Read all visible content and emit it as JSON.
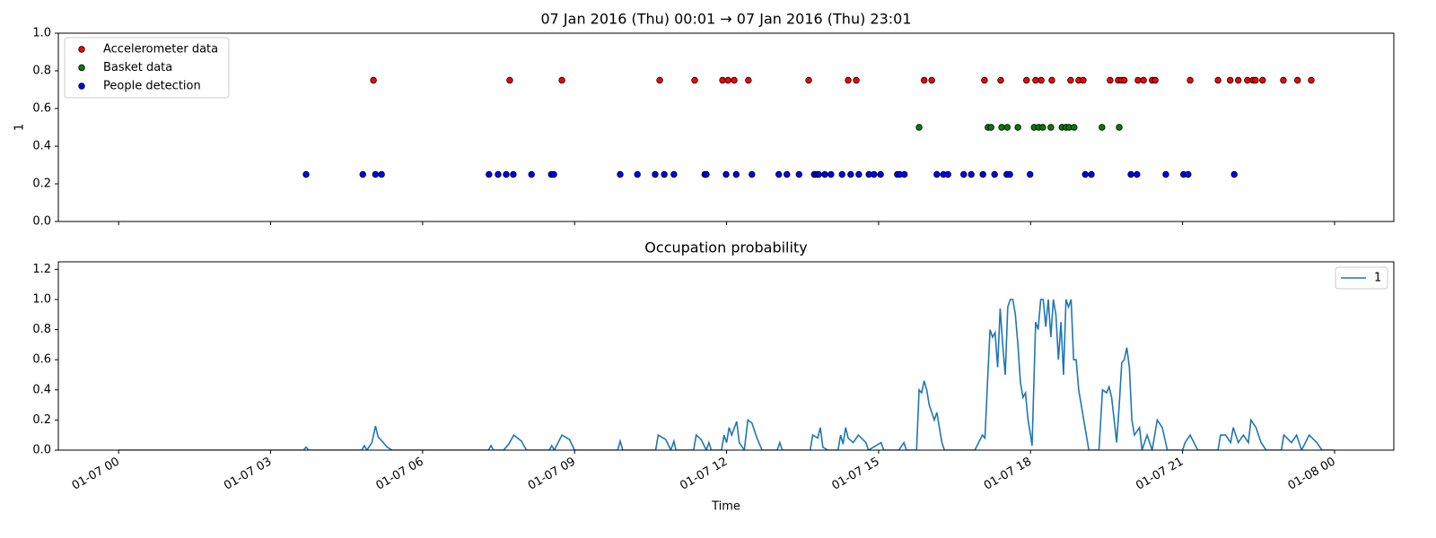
{
  "chart_data": [
    {
      "type": "scatter",
      "title": "07 Jan 2016 (Thu) 00:01 → 07 Jan 2016 (Thu) 23:01",
      "ylabel": "1",
      "xlim": [
        -1.19,
        25.17
      ],
      "xticks": [
        0,
        3,
        6,
        9,
        12,
        15,
        18,
        21,
        24
      ],
      "ylim": [
        0,
        1
      ],
      "yticks": [
        {
          "value": 0,
          "label": "0.0"
        },
        {
          "value": 0.2,
          "label": "0.2"
        },
        {
          "value": 0.4,
          "label": "0.4"
        },
        {
          "value": 0.6,
          "label": "0.6"
        },
        {
          "value": 0.8,
          "label": "0.8"
        },
        {
          "value": 1,
          "label": "1.0"
        }
      ],
      "legend": "upper left",
      "series": [
        {
          "name": "Accelerometer data",
          "color": "#ff0000",
          "x": [
            5.03,
            7.72,
            8.75,
            10.68,
            11.37,
            11.92,
            12.03,
            12.15,
            12.43,
            13.62,
            14.4,
            14.56,
            15.9,
            16.05,
            17.09,
            17.41,
            17.92,
            18.1,
            18.21,
            18.42,
            18.79,
            18.95,
            19.04,
            19.57,
            19.73,
            19.8,
            19.85,
            20.12,
            20.23,
            20.4,
            20.46,
            21.15,
            21.7,
            21.94,
            22.1,
            22.28,
            22.39,
            22.44,
            22.58,
            22.99,
            23.27,
            23.54
          ],
          "values": [
            0.75,
            0.75,
            0.75,
            0.75,
            0.75,
            0.75,
            0.75,
            0.75,
            0.75,
            0.75,
            0.75,
            0.75,
            0.75,
            0.75,
            0.75,
            0.75,
            0.75,
            0.75,
            0.75,
            0.75,
            0.75,
            0.75,
            0.75,
            0.75,
            0.75,
            0.75,
            0.75,
            0.75,
            0.75,
            0.75,
            0.75,
            0.75,
            0.75,
            0.75,
            0.75,
            0.75,
            0.75,
            0.75,
            0.75,
            0.75,
            0.75,
            0.75
          ]
        },
        {
          "name": "Basket data",
          "color": "#008000",
          "x": [
            15.8,
            17.16,
            17.22,
            17.43,
            17.54,
            17.75,
            18.07,
            18.16,
            18.24,
            18.4,
            18.62,
            18.7,
            18.76,
            18.86,
            19.41,
            19.75
          ],
          "values": [
            0.5,
            0.5,
            0.5,
            0.5,
            0.5,
            0.5,
            0.5,
            0.5,
            0.5,
            0.5,
            0.5,
            0.5,
            0.5,
            0.5,
            0.5,
            0.5
          ]
        },
        {
          "name": "People detection",
          "color": "#0000ff",
          "x": [
            3.7,
            4.82,
            5.07,
            5.19,
            7.31,
            7.49,
            7.65,
            7.79,
            8.15,
            8.54,
            8.59,
            9.9,
            10.24,
            10.59,
            10.77,
            10.96,
            11.57,
            11.6,
            11.99,
            12.19,
            12.5,
            13.03,
            13.19,
            13.43,
            13.73,
            13.78,
            13.82,
            13.94,
            14.06,
            14.28,
            14.45,
            14.61,
            14.81,
            14.91,
            15.04,
            15.37,
            15.42,
            15.51,
            16.15,
            16.28,
            16.37,
            16.68,
            16.83,
            17.06,
            17.29,
            17.53,
            17.59,
            17.99,
            19.08,
            19.2,
            19.98,
            20.1,
            20.67,
            21.02,
            21.11,
            22.02
          ],
          "values": [
            0.25,
            0.25,
            0.25,
            0.25,
            0.25,
            0.25,
            0.25,
            0.25,
            0.25,
            0.25,
            0.25,
            0.25,
            0.25,
            0.25,
            0.25,
            0.25,
            0.25,
            0.25,
            0.25,
            0.25,
            0.25,
            0.25,
            0.25,
            0.25,
            0.25,
            0.25,
            0.25,
            0.25,
            0.25,
            0.25,
            0.25,
            0.25,
            0.25,
            0.25,
            0.25,
            0.25,
            0.25,
            0.25,
            0.25,
            0.25,
            0.25,
            0.25,
            0.25,
            0.25,
            0.25,
            0.25,
            0.25,
            0.25,
            0.25,
            0.25,
            0.25,
            0.25,
            0.25,
            0.25,
            0.25,
            0.25
          ]
        }
      ]
    },
    {
      "type": "line",
      "title": "Occupation probability",
      "xlabel": "Time",
      "xlim": [
        -1.19,
        25.17
      ],
      "xticks": [
        {
          "value": 0,
          "label": "01-07 00"
        },
        {
          "value": 3,
          "label": "01-07 03"
        },
        {
          "value": 6,
          "label": "01-07 06"
        },
        {
          "value": 9,
          "label": "01-07 09"
        },
        {
          "value": 12,
          "label": "01-07 12"
        },
        {
          "value": 15,
          "label": "01-07 15"
        },
        {
          "value": 18,
          "label": "01-07 18"
        },
        {
          "value": 21,
          "label": "01-07 21"
        },
        {
          "value": 24,
          "label": "01-08 00"
        }
      ],
      "ylim": [
        0,
        1.25
      ],
      "yticks": [
        {
          "value": 0,
          "label": "0.0"
        },
        {
          "value": 0.2,
          "label": "0.2"
        },
        {
          "value": 0.4,
          "label": "0.4"
        },
        {
          "value": 0.6,
          "label": "0.6"
        },
        {
          "value": 0.8,
          "label": "0.8"
        },
        {
          "value": 1,
          "label": "1.0"
        },
        {
          "value": 1.2,
          "label": "1.2"
        }
      ],
      "legend": "upper right",
      "series": [
        {
          "name": "1",
          "color": "#1f77b4",
          "x": [
            0,
            3.65,
            3.7,
            3.75,
            4.8,
            4.85,
            4.9,
            5.0,
            5.07,
            5.12,
            5.3,
            5.4,
            7.3,
            7.35,
            7.4,
            7.6,
            7.7,
            7.8,
            7.95,
            8.05,
            8.5,
            8.55,
            8.6,
            8.75,
            8.9,
            9.0,
            9.85,
            9.9,
            9.95,
            10.6,
            10.65,
            10.8,
            10.9,
            10.96,
            11.0,
            11.35,
            11.4,
            11.5,
            11.6,
            11.65,
            11.7,
            11.9,
            11.95,
            12.0,
            12.05,
            12.1,
            12.2,
            12.25,
            12.35,
            12.42,
            12.5,
            12.6,
            12.7,
            13.0,
            13.05,
            13.1,
            13.65,
            13.7,
            13.8,
            13.85,
            13.9,
            14.0,
            14.2,
            14.25,
            14.3,
            14.35,
            14.4,
            14.5,
            14.6,
            14.75,
            14.8,
            15.05,
            15.1,
            15.4,
            15.5,
            15.55,
            15.75,
            15.8,
            15.85,
            15.9,
            15.95,
            16.0,
            16.1,
            16.15,
            16.25,
            16.3,
            16.9,
            17.05,
            17.1,
            17.15,
            17.2,
            17.25,
            17.3,
            17.35,
            17.4,
            17.45,
            17.5,
            17.55,
            17.6,
            17.65,
            17.7,
            17.75,
            17.8,
            17.85,
            17.9,
            17.95,
            18.0,
            18.03,
            18.1,
            18.15,
            18.2,
            18.25,
            18.3,
            18.35,
            18.4,
            18.45,
            18.5,
            18.55,
            18.6,
            18.65,
            18.7,
            18.75,
            18.8,
            18.85,
            18.9,
            18.95,
            19.05,
            19.15,
            19.35,
            19.42,
            19.5,
            19.55,
            19.6,
            19.7,
            19.75,
            19.8,
            19.85,
            19.9,
            19.95,
            20.0,
            20.05,
            20.15,
            20.2,
            20.3,
            20.4,
            20.5,
            20.6,
            20.7,
            21.0,
            21.05,
            21.15,
            21.3,
            21.7,
            21.75,
            21.85,
            21.95,
            22.0,
            22.1,
            22.2,
            22.3,
            22.35,
            22.45,
            22.55,
            22.65,
            22.95,
            23.0,
            23.15,
            23.25,
            23.35,
            23.5,
            23.65,
            23.75,
            24
          ],
          "values": [
            0,
            0,
            0.02,
            0,
            0,
            0.03,
            0,
            0.05,
            0.16,
            0.09,
            0.02,
            0,
            0,
            0.03,
            0,
            0,
            0.04,
            0.1,
            0.06,
            0,
            0,
            0.03,
            0,
            0.1,
            0.07,
            0,
            0,
            0.06,
            0,
            0,
            0.1,
            0.07,
            0,
            0.06,
            0,
            0,
            0.1,
            0.07,
            0,
            0.05,
            0,
            0,
            0.1,
            0.05,
            0.15,
            0.1,
            0.19,
            0.05,
            0,
            0.2,
            0.18,
            0.08,
            0,
            0,
            0.05,
            0,
            0,
            0.1,
            0.08,
            0.15,
            0.02,
            0,
            0,
            0.1,
            0.04,
            0.15,
            0.08,
            0.05,
            0.1,
            0.05,
            0,
            0.05,
            0,
            0,
            0.05,
            0,
            0,
            0.4,
            0.38,
            0.46,
            0.4,
            0.3,
            0.2,
            0.25,
            0.05,
            0,
            0,
            0.1,
            0.08,
            0.45,
            0.8,
            0.75,
            0.78,
            0.55,
            0.94,
            0.7,
            0.5,
            0.95,
            1,
            1,
            0.9,
            0.7,
            0.45,
            0.35,
            0.38,
            0.2,
            0.1,
            0.03,
            0.85,
            0.8,
            1,
            1,
            0.82,
            1,
            0.75,
            1,
            0.9,
            0.6,
            0.85,
            0.5,
            1,
            0.95,
            1,
            0.6,
            0.6,
            0.4,
            0.2,
            0,
            0,
            0.4,
            0.38,
            0.42,
            0.35,
            0.05,
            0.3,
            0.58,
            0.6,
            0.68,
            0.55,
            0.2,
            0.1,
            0.15,
            0,
            0.1,
            0,
            0.2,
            0.15,
            0,
            0,
            0.05,
            0.1,
            0,
            0,
            0.1,
            0.1,
            0.05,
            0.15,
            0.05,
            0.1,
            0.05,
            0.2,
            0.15,
            0.05,
            0,
            0,
            0.1,
            0.05,
            0.1,
            0,
            0.1,
            0.05,
            0,
            0
          ]
        }
      ]
    }
  ]
}
